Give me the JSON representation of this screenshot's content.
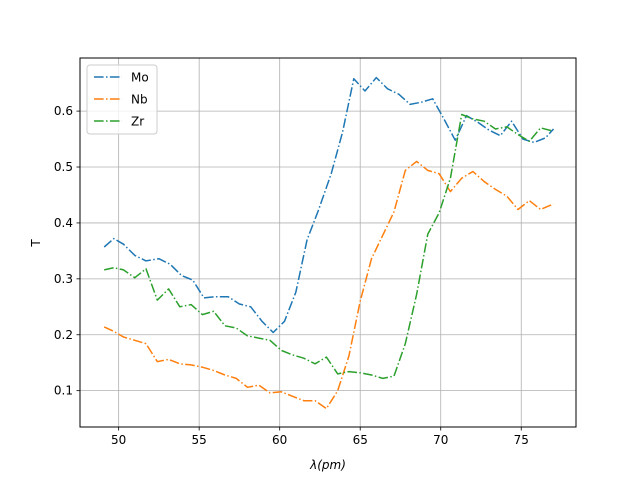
{
  "chart_data": {
    "type": "line",
    "xlabel": "λ(pm)",
    "ylabel": "T",
    "xlim": [
      47.6,
      78.4
    ],
    "ylim": [
      0.035,
      0.695
    ],
    "xticks": [
      50,
      55,
      60,
      65,
      70,
      75
    ],
    "yticks": [
      0.1,
      0.2,
      0.3,
      0.4,
      0.5,
      0.6
    ],
    "xtick_labels": [
      "50",
      "55",
      "60",
      "65",
      "70",
      "75"
    ],
    "ytick_labels": [
      "0.1",
      "0.2",
      "0.3",
      "0.4",
      "0.5",
      "0.6"
    ],
    "grid": true,
    "legend_position": "top-left",
    "series": [
      {
        "name": "Mo",
        "color": "#1f77b4",
        "x": [
          49.1,
          49.7,
          50.3,
          51.0,
          51.7,
          52.5,
          53.2,
          53.9,
          54.6,
          55.3,
          56.0,
          56.8,
          57.5,
          58.2,
          58.9,
          59.6,
          60.3,
          61.0,
          61.7,
          62.4,
          63.2,
          63.9,
          64.6,
          65.3,
          66.0,
          66.7,
          67.4,
          68.1,
          68.8,
          69.5,
          70.2,
          70.9,
          71.6,
          72.3,
          73.0,
          73.7,
          74.4,
          75.1,
          75.8,
          76.5,
          77.0
        ],
        "y": [
          0.357,
          0.372,
          0.362,
          0.342,
          0.332,
          0.336,
          0.326,
          0.306,
          0.298,
          0.266,
          0.268,
          0.268,
          0.255,
          0.25,
          0.224,
          0.204,
          0.224,
          0.276,
          0.37,
          0.422,
          0.488,
          0.562,
          0.658,
          0.636,
          0.66,
          0.64,
          0.63,
          0.612,
          0.616,
          0.622,
          0.586,
          0.548,
          0.592,
          0.58,
          0.566,
          0.556,
          0.582,
          0.55,
          0.544,
          0.552,
          0.568
        ]
      },
      {
        "name": "Nb",
        "color": "#ff7f0e",
        "x": [
          49.1,
          49.7,
          50.3,
          51.0,
          51.7,
          52.4,
          53.1,
          53.8,
          54.5,
          55.2,
          55.9,
          56.6,
          57.3,
          58.0,
          58.7,
          59.4,
          60.1,
          60.8,
          61.5,
          62.2,
          62.9,
          63.6,
          64.3,
          65.0,
          65.7,
          66.4,
          67.1,
          67.8,
          68.5,
          69.2,
          69.9,
          70.6,
          71.3,
          72.0,
          72.7,
          73.4,
          74.1,
          74.8,
          75.5,
          76.2,
          77.0
        ],
        "y": [
          0.214,
          0.206,
          0.196,
          0.19,
          0.184,
          0.152,
          0.156,
          0.148,
          0.146,
          0.142,
          0.136,
          0.128,
          0.122,
          0.106,
          0.11,
          0.096,
          0.098,
          0.09,
          0.082,
          0.082,
          0.068,
          0.1,
          0.162,
          0.26,
          0.336,
          0.378,
          0.42,
          0.494,
          0.51,
          0.494,
          0.488,
          0.456,
          0.48,
          0.492,
          0.474,
          0.46,
          0.448,
          0.424,
          0.44,
          0.424,
          0.434
        ]
      },
      {
        "name": "Zr",
        "color": "#2ca02c",
        "x": [
          49.1,
          49.7,
          50.3,
          51.0,
          51.7,
          52.4,
          53.1,
          53.8,
          54.5,
          55.2,
          55.9,
          56.6,
          57.3,
          58.0,
          58.7,
          59.4,
          60.1,
          60.8,
          61.5,
          62.2,
          62.9,
          63.6,
          64.3,
          65.0,
          65.7,
          66.4,
          67.1,
          67.8,
          68.5,
          69.2,
          69.9,
          70.6,
          71.3,
          72.0,
          72.7,
          73.4,
          74.1,
          74.8,
          75.5,
          76.2,
          77.0
        ],
        "y": [
          0.316,
          0.32,
          0.316,
          0.302,
          0.318,
          0.262,
          0.282,
          0.25,
          0.254,
          0.236,
          0.242,
          0.216,
          0.212,
          0.198,
          0.194,
          0.19,
          0.172,
          0.164,
          0.158,
          0.148,
          0.16,
          0.13,
          0.134,
          0.132,
          0.128,
          0.122,
          0.126,
          0.184,
          0.272,
          0.38,
          0.418,
          0.48,
          0.594,
          0.586,
          0.582,
          0.568,
          0.572,
          0.558,
          0.546,
          0.57,
          0.564
        ]
      }
    ]
  }
}
